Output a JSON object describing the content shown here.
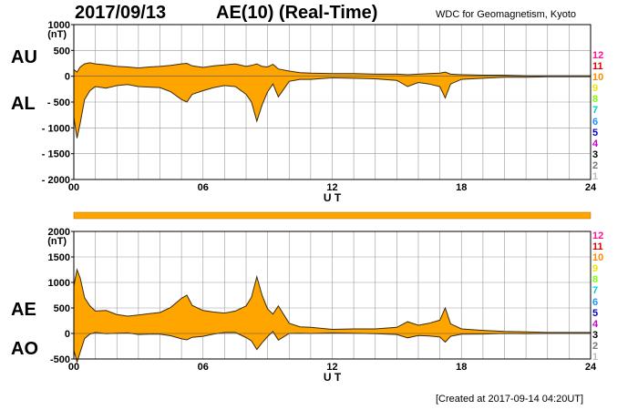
{
  "header": {
    "date": "2017/09/13",
    "title": "AE(10) (Real-Time)",
    "institution": "WDC for Geomagnetism, Kyoto"
  },
  "footer": {
    "created": "[Created at 2017-09-14 04:20UT]"
  },
  "colors": {
    "fill": "#ffa500",
    "line": "#3a2a10",
    "grid": "#999999",
    "stations": [
      "#ff1493",
      "#dd0000",
      "#ff8c00",
      "#e8e800",
      "#7fff00",
      "#00ced1",
      "#1e90ff",
      "#0000cd",
      "#cc00cc",
      "#000000",
      "#777777",
      "#bbbbbb"
    ]
  },
  "stations": [
    "12",
    "11",
    "10",
    "9",
    "8",
    "7",
    "6",
    "5",
    "4",
    "3",
    "2",
    "1"
  ],
  "chart_data": [
    {
      "type": "area",
      "panel": "AU/AL",
      "labels": {
        "upper": "AU",
        "lower": "AL"
      },
      "xlabel": "U T",
      "xlim": [
        0,
        24
      ],
      "xticks": [
        "00",
        "06",
        "12",
        "18",
        "24"
      ],
      "ylim": [
        -2000,
        1000
      ],
      "yunit": "(nT)",
      "yticks": [
        "1000",
        "500",
        "0",
        "- 500",
        "- 1000",
        "- 1500",
        "- 2000"
      ],
      "x": [
        0,
        0.15,
        0.3,
        0.5,
        0.75,
        1,
        1.5,
        2,
        2.5,
        3,
        3.5,
        4,
        4.5,
        5,
        5.25,
        5.5,
        6,
        6.5,
        7,
        7.5,
        8,
        8.25,
        8.5,
        8.75,
        9,
        9.25,
        9.5,
        10,
        10.5,
        11,
        12,
        13,
        14,
        15,
        15.5,
        16,
        16.5,
        17,
        17.25,
        17.5,
        18,
        19,
        20,
        21,
        22,
        23,
        24
      ],
      "series": [
        {
          "name": "AU",
          "values": [
            130,
            80,
            180,
            240,
            260,
            240,
            220,
            190,
            180,
            160,
            180,
            190,
            210,
            240,
            250,
            200,
            170,
            200,
            220,
            240,
            190,
            210,
            240,
            190,
            180,
            230,
            140,
            100,
            70,
            60,
            50,
            50,
            40,
            40,
            30,
            40,
            50,
            60,
            80,
            40,
            30,
            20,
            20,
            10,
            10,
            10,
            10
          ]
        },
        {
          "name": "AL",
          "values": [
            -800,
            -1200,
            -900,
            -450,
            -280,
            -200,
            -230,
            -180,
            -160,
            -200,
            -210,
            -220,
            -300,
            -450,
            -500,
            -350,
            -280,
            -220,
            -180,
            -200,
            -350,
            -500,
            -870,
            -550,
            -300,
            -150,
            -400,
            -100,
            -60,
            -60,
            -30,
            -40,
            -50,
            -80,
            -200,
            -120,
            -150,
            -200,
            -420,
            -150,
            -60,
            -40,
            -20,
            -20,
            -10,
            -10,
            -10
          ]
        }
      ]
    },
    {
      "type": "area",
      "panel": "AE/AO",
      "labels": {
        "upper": "AE",
        "lower": "AO"
      },
      "xlabel": "U T",
      "xlim": [
        0,
        24
      ],
      "xticks": [
        "00",
        "06",
        "12",
        "18",
        "24"
      ],
      "ylim": [
        -500,
        2000
      ],
      "yunit": "(nT)",
      "yticks": [
        "2000",
        "1500",
        "1000",
        "500",
        "0",
        "-500"
      ],
      "x": [
        0,
        0.15,
        0.3,
        0.5,
        0.75,
        1,
        1.5,
        2,
        2.5,
        3,
        3.5,
        4,
        4.5,
        5,
        5.25,
        5.5,
        6,
        6.5,
        7,
        7.5,
        8,
        8.25,
        8.5,
        8.75,
        9,
        9.25,
        9.5,
        10,
        10.5,
        11,
        12,
        13,
        14,
        15,
        15.5,
        16,
        16.5,
        17,
        17.25,
        17.5,
        18,
        19,
        20,
        21,
        22,
        23,
        24
      ],
      "series": [
        {
          "name": "AE",
          "values": [
            930,
            1250,
            1080,
            700,
            540,
            440,
            450,
            370,
            340,
            360,
            390,
            410,
            510,
            690,
            750,
            550,
            450,
            420,
            400,
            440,
            540,
            710,
            1110,
            740,
            480,
            380,
            540,
            200,
            130,
            120,
            80,
            90,
            90,
            120,
            230,
            160,
            200,
            260,
            500,
            190,
            90,
            60,
            40,
            30,
            20,
            20,
            20
          ]
        },
        {
          "name": "AO",
          "values": [
            -330,
            -560,
            -360,
            -100,
            -10,
            20,
            -5,
            5,
            10,
            -20,
            -15,
            -15,
            -45,
            -105,
            -125,
            -75,
            -55,
            -10,
            20,
            20,
            -80,
            -145,
            -315,
            -180,
            -60,
            40,
            -130,
            0,
            5,
            0,
            10,
            5,
            -5,
            -20,
            -85,
            -40,
            -50,
            -70,
            -170,
            -55,
            -15,
            -10,
            0,
            -5,
            0,
            0,
            0
          ]
        }
      ]
    }
  ]
}
